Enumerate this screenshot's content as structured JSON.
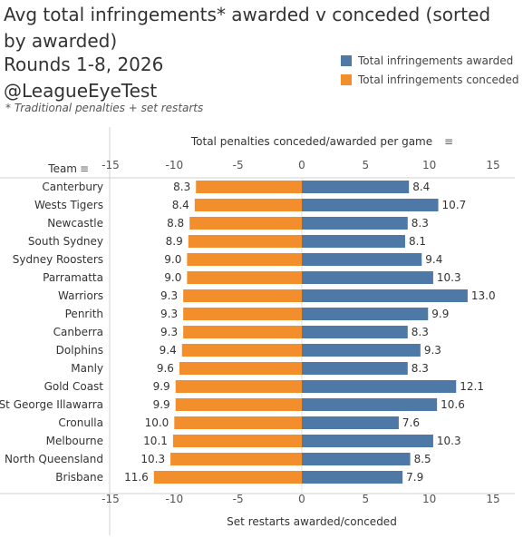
{
  "title": "Avg total infringements* awarded v conceded (sorted by awarded)",
  "subtitle": "Rounds 1-8, 2026",
  "handle": "@LeagueEyeTest",
  "footnote": "* Traditional penalties + set restarts",
  "legend": {
    "awarded": "Total infringements awarded",
    "conceded": "Total infringements conceded"
  },
  "colors": {
    "awarded": "#4e79a7",
    "conceded": "#f28e2b"
  },
  "chart_data": {
    "type": "bar",
    "orientation": "horizontal-diverging",
    "row_header": "Team",
    "top_axis_label": "Total penalties conceded/awarded per game",
    "bottom_axis_label": "Set restarts awarded/conceded",
    "xlim": [
      -15,
      15
    ],
    "ticks": [
      -15,
      -10,
      -5,
      0,
      5,
      10,
      15
    ],
    "categories": [
      "Canterbury",
      "Wests Tigers",
      "Newcastle",
      "South Sydney",
      "Sydney Roosters",
      "Parramatta",
      "Warriors",
      "Penrith",
      "Canberra",
      "Dolphins",
      "Manly",
      "Gold Coast",
      "St George Illawarra",
      "Cronulla",
      "Melbourne",
      "North Queensland",
      "Brisbane"
    ],
    "series": [
      {
        "name": "Total infringements conceded",
        "values": [
          8.3,
          8.4,
          8.8,
          8.9,
          9.0,
          9.0,
          9.3,
          9.3,
          9.3,
          9.4,
          9.6,
          9.9,
          9.9,
          10.0,
          10.1,
          10.3,
          11.6
        ]
      },
      {
        "name": "Total infringements awarded",
        "values": [
          8.4,
          10.7,
          8.3,
          8.1,
          9.4,
          10.3,
          13.0,
          9.9,
          8.3,
          9.3,
          8.3,
          12.1,
          10.6,
          7.6,
          10.3,
          8.5,
          7.9
        ]
      }
    ]
  }
}
